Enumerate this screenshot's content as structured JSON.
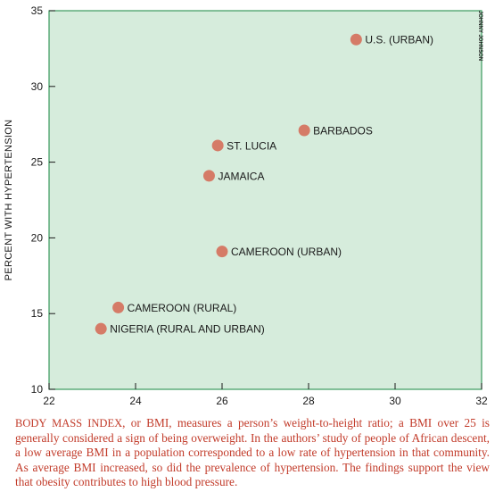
{
  "chart_data": {
    "type": "scatter",
    "title": "",
    "xlabel": "",
    "ylabel": "PERCENT WITH HYPERTENSION",
    "xlim": [
      22,
      32
    ],
    "ylim": [
      10,
      35
    ],
    "xticks": [
      "22",
      "24",
      "26",
      "28",
      "30",
      "32"
    ],
    "yticks": [
      "10",
      "15",
      "20",
      "25",
      "30",
      "35"
    ],
    "grid": false,
    "points": [
      {
        "label": "U.S. (URBAN)",
        "x": 29.1,
        "y": 33.1
      },
      {
        "label": "BARBADOS",
        "x": 27.9,
        "y": 27.1
      },
      {
        "label": "ST. LUCIA",
        "x": 25.9,
        "y": 26.1
      },
      {
        "label": "JAMAICA",
        "x": 25.7,
        "y": 24.1
      },
      {
        "label": "CAMEROON (URBAN)",
        "x": 26.0,
        "y": 19.1
      },
      {
        "label": "CAMEROON (RURAL)",
        "x": 23.6,
        "y": 15.4
      },
      {
        "label": "NIGERIA (RURAL AND URBAN)",
        "x": 23.2,
        "y": 14.0
      }
    ],
    "colors": {
      "plot_background": "#d6ecdc",
      "plot_border": "#3a9a5e",
      "marker": "#d57b67"
    }
  },
  "credit": "JOHNNY JOHNSON",
  "caption": {
    "lead": "Body mass index",
    "text": ", or BMI, measures a person’s weight-to-height ratio; a BMI over 25 is generally considered a sign of being overweight. In the authors’ study of people of African descent, a low average BMI in a population corresponded to a low rate of hypertension in that community. As average BMI increased, so did the prevalence of hypertension. The findings support the view that obesity contributes to high blood pressure."
  }
}
